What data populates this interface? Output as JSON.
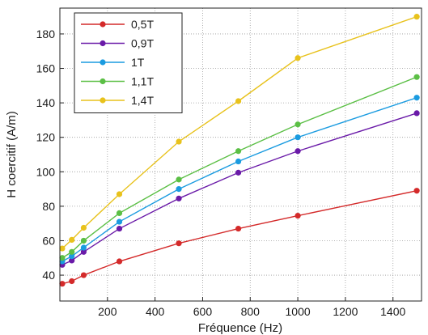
{
  "chart_data": {
    "type": "line",
    "title": "",
    "xlabel": "Fréquence (Hz)",
    "ylabel": "H coercitif (A/m)",
    "xlim": [
      0,
      1520
    ],
    "ylim": [
      25,
      195
    ],
    "xticks": [
      200,
      400,
      600,
      800,
      1000,
      1200,
      1400
    ],
    "yticks": [
      40,
      60,
      80,
      100,
      120,
      140,
      160,
      180
    ],
    "grid": true,
    "legend_position": "top-left",
    "x": [
      10,
      50,
      100,
      250,
      500,
      750,
      1000,
      1500
    ],
    "series": [
      {
        "name": "0,5T",
        "color": "#d42a2a",
        "values": [
          35,
          36.5,
          40,
          48,
          58.5,
          67,
          74.5,
          89
        ]
      },
      {
        "name": "0,9T",
        "color": "#6a1aa8",
        "values": [
          46,
          48.5,
          53.5,
          67,
          84.5,
          99.5,
          112,
          134
        ]
      },
      {
        "name": "1T",
        "color": "#1a9be0",
        "values": [
          48,
          51,
          56,
          71,
          90,
          106,
          120,
          143
        ]
      },
      {
        "name": "1,1T",
        "color": "#5bbf45",
        "values": [
          50,
          53.5,
          60,
          76,
          95.5,
          112,
          127.5,
          155
        ]
      },
      {
        "name": "1,4T",
        "color": "#e8c21c",
        "values": [
          55.5,
          60.5,
          67.5,
          87,
          117.5,
          141,
          166,
          190
        ]
      }
    ]
  }
}
